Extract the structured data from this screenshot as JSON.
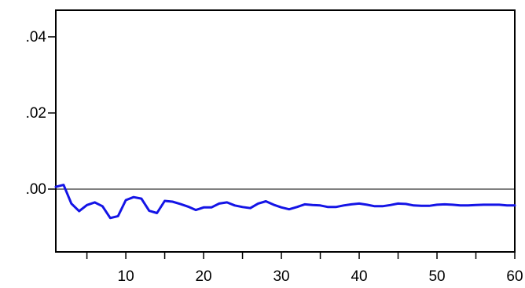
{
  "colors": {
    "series": "#1414E6",
    "axis": "#000000",
    "zero_line": "#000000",
    "background": "#ffffff"
  },
  "chart_data": {
    "type": "line",
    "title": "",
    "xlabel": "",
    "ylabel": "",
    "grid": false,
    "legend": "none",
    "xlim": [
      1,
      60
    ],
    "ylim": [
      -0.0165,
      0.047
    ],
    "reference_line": 0.0,
    "x_ticks": [
      {
        "value": 10,
        "label": "10"
      },
      {
        "value": 20,
        "label": "20"
      },
      {
        "value": 30,
        "label": "30"
      },
      {
        "value": 40,
        "label": "40"
      },
      {
        "value": 50,
        "label": "50"
      },
      {
        "value": 60,
        "label": "60"
      }
    ],
    "x_minor_ticks": [
      5,
      15,
      25,
      35,
      45,
      55
    ],
    "y_ticks": [
      {
        "value": 0.0,
        "label": ".00"
      },
      {
        "value": 0.02,
        "label": ".02"
      },
      {
        "value": 0.04,
        "label": ".04"
      }
    ],
    "series": [
      {
        "x": [
          1,
          2,
          3,
          4,
          5,
          6,
          7,
          8,
          9,
          10,
          11,
          12,
          13,
          14,
          15,
          16,
          17,
          18,
          19,
          20,
          21,
          22,
          23,
          24,
          25,
          26,
          27,
          28,
          29,
          30,
          31,
          32,
          33,
          34,
          35,
          36,
          37,
          38,
          39,
          40,
          41,
          42,
          43,
          44,
          45,
          46,
          47,
          48,
          49,
          50,
          51,
          52,
          53,
          54,
          55,
          56,
          57,
          58,
          59,
          60
        ],
        "values": [
          0.0006,
          0.0011,
          -0.0038,
          -0.0058,
          -0.0042,
          -0.0035,
          -0.0045,
          -0.0076,
          -0.0071,
          -0.0029,
          -0.0021,
          -0.0025,
          -0.0057,
          -0.0063,
          -0.0031,
          -0.0033,
          -0.0039,
          -0.0046,
          -0.0055,
          -0.0048,
          -0.0048,
          -0.0038,
          -0.0035,
          -0.0043,
          -0.0047,
          -0.005,
          -0.0038,
          -0.0032,
          -0.0041,
          -0.0048,
          -0.0053,
          -0.0047,
          -0.004,
          -0.0042,
          -0.0043,
          -0.0047,
          -0.0047,
          -0.0043,
          -0.004,
          -0.0038,
          -0.0041,
          -0.0045,
          -0.0045,
          -0.0042,
          -0.0038,
          -0.0039,
          -0.0043,
          -0.0044,
          -0.0044,
          -0.0041,
          -0.004,
          -0.0041,
          -0.0043,
          -0.0043,
          -0.0042,
          -0.0041,
          -0.0041,
          -0.0041,
          -0.0043,
          -0.0043
        ]
      }
    ]
  }
}
